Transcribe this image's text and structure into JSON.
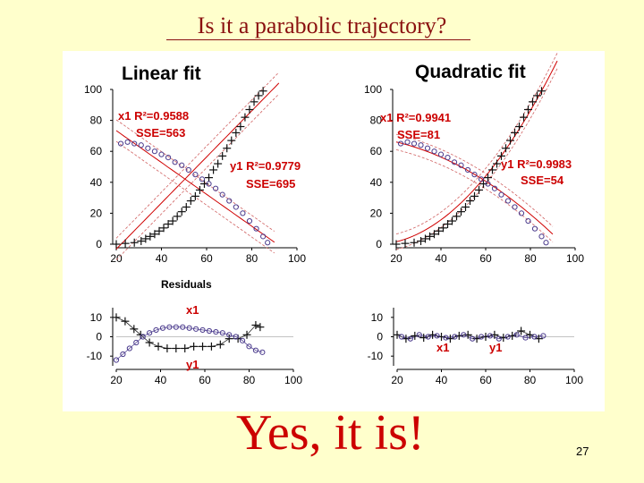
{
  "slide": {
    "title": "Is it a parabolic trajectory?",
    "conclusion": "Yes, it is!",
    "page_number": "27"
  },
  "colors": {
    "background": "#ffffcc",
    "title": "#8a1010",
    "conclusion": "#cc0000",
    "annotation": "#cc0000",
    "x1_series": "#111111",
    "y1_series": "#4a3a8c",
    "fit_line": "#d00000",
    "confidence_band": "#d06060"
  },
  "chart_data": [
    {
      "type": "scatter",
      "title": "Linear fit",
      "xlim": [
        20,
        100
      ],
      "ylim": [
        0,
        100
      ],
      "x_ticks": [
        "20",
        "40",
        "60",
        "80",
        "100"
      ],
      "y_ticks": [
        "0",
        "20",
        "40",
        "60",
        "80",
        "100"
      ],
      "annotations": [
        "x1 R²=0.9588",
        "SSE=563",
        "y1 R²=0.9779",
        "SSE=695"
      ],
      "series": [
        {
          "marker": "plus",
          "x": [
            20,
            24,
            28,
            31,
            33,
            35,
            37,
            39,
            41,
            43,
            45,
            47,
            49,
            51,
            53,
            55,
            57,
            59,
            61,
            63,
            65,
            67,
            69,
            71,
            73,
            75,
            77,
            79,
            81,
            83,
            85
          ],
          "y": [
            0,
            0.5,
            1,
            2,
            3.5,
            5,
            6.5,
            8.5,
            10.5,
            13,
            15,
            18,
            21,
            24,
            28,
            31,
            35,
            39,
            43,
            48,
            52,
            57,
            62,
            67,
            72,
            76,
            82,
            87,
            92,
            96,
            99
          ]
        },
        {
          "marker": "circle",
          "x": [
            22,
            25,
            28,
            31,
            34,
            37,
            40,
            43,
            46,
            49,
            52,
            55,
            58,
            61,
            64,
            67,
            70,
            73,
            76,
            79,
            82,
            85,
            87
          ],
          "y": [
            65,
            66,
            65,
            64,
            62,
            60,
            58,
            56,
            53,
            51,
            48,
            45,
            42,
            39,
            36,
            32,
            28,
            24,
            20,
            15,
            10,
            5,
            1
          ]
        }
      ],
      "fits": [
        {
          "slope": 1.49,
          "intercept": -33
        },
        {
          "slope": -1.03,
          "intercept": 94
        }
      ]
    },
    {
      "type": "scatter",
      "title": "Quadratic fit",
      "xlim": [
        20,
        100
      ],
      "ylim": [
        0,
        100
      ],
      "x_ticks": [
        "20",
        "40",
        "60",
        "80",
        "100"
      ],
      "y_ticks": [
        "0",
        "20",
        "40",
        "60",
        "80",
        "100"
      ],
      "annotations": [
        "x1 R²=0.9941",
        "SSE=81",
        "y1 R²=0.9983",
        "SSE=54"
      ],
      "series": [
        {
          "marker": "plus",
          "x": [
            20,
            24,
            28,
            31,
            33,
            35,
            37,
            39,
            41,
            43,
            45,
            47,
            49,
            51,
            53,
            55,
            57,
            59,
            61,
            63,
            65,
            67,
            69,
            71,
            73,
            75,
            77,
            79,
            81,
            83,
            85
          ],
          "y": [
            0,
            0.5,
            1,
            2,
            3.5,
            5,
            6.5,
            8.5,
            10.5,
            13,
            15,
            18,
            21,
            24,
            28,
            31,
            35,
            39,
            43,
            48,
            52,
            57,
            62,
            67,
            72,
            76,
            82,
            87,
            92,
            96,
            99
          ]
        },
        {
          "marker": "circle",
          "x": [
            22,
            25,
            28,
            31,
            34,
            37,
            40,
            43,
            46,
            49,
            52,
            55,
            58,
            61,
            64,
            67,
            70,
            73,
            76,
            79,
            82,
            85,
            87
          ],
          "y": [
            65,
            66,
            65,
            64,
            62,
            60,
            58,
            56,
            53,
            51,
            48,
            45,
            42,
            39,
            36,
            32,
            28,
            24,
            20,
            15,
            10,
            5,
            1
          ]
        }
      ],
      "fits": [
        {
          "a": 0.0176,
          "b": -0.348,
          "c": 1.5
        },
        {
          "a": -0.00726,
          "b": -0.053,
          "c": 70
        }
      ]
    },
    {
      "type": "scatter",
      "title": "Residuals",
      "xlim": [
        20,
        100
      ],
      "ylim": [
        -15,
        15
      ],
      "x_ticks": [
        "20",
        "40",
        "60",
        "80",
        "100"
      ],
      "y_ticks": [
        "-10",
        "0",
        "10"
      ],
      "annotations": [
        "x1",
        "y1"
      ],
      "series": [
        {
          "marker": "plus",
          "x": [
            20,
            24,
            28,
            31,
            35,
            39,
            43,
            47,
            51,
            55,
            59,
            63,
            67,
            71,
            75,
            79,
            83,
            85
          ],
          "y": [
            10,
            8,
            4,
            1,
            -3,
            -5,
            -6,
            -6,
            -6,
            -5,
            -5,
            -5,
            -4,
            -1,
            -1,
            1,
            6,
            5
          ]
        },
        {
          "marker": "circle",
          "x": [
            20,
            23,
            26,
            29,
            32,
            35,
            38,
            41,
            44,
            47,
            50,
            53,
            56,
            59,
            62,
            65,
            68,
            71,
            74,
            77,
            80,
            83,
            86
          ],
          "y": [
            -12,
            -9,
            -6,
            -3,
            0,
            2,
            3.5,
            4.5,
            5,
            5,
            5,
            4.5,
            4,
            3.5,
            3,
            2.5,
            2,
            1,
            0,
            -2,
            -5,
            -7,
            -8
          ]
        }
      ]
    },
    {
      "type": "scatter",
      "title": "",
      "xlim": [
        20,
        100
      ],
      "ylim": [
        -15,
        15
      ],
      "x_ticks": [
        "20",
        "40",
        "60",
        "80",
        "100"
      ],
      "y_ticks": [
        "-10",
        "0",
        "10"
      ],
      "annotations": [
        "x1",
        "y1"
      ],
      "series": [
        {
          "marker": "plus",
          "x": [
            20,
            24,
            28,
            32,
            36,
            40,
            44,
            48,
            52,
            56,
            60,
            64,
            68,
            72,
            76,
            80,
            84
          ],
          "y": [
            1,
            -1,
            0.5,
            -0.5,
            1,
            0,
            -1,
            0.5,
            1,
            -1,
            0,
            1,
            -0.5,
            0.5,
            3,
            1,
            -1
          ]
        },
        {
          "marker": "circle",
          "x": [
            22,
            26,
            30,
            34,
            38,
            42,
            46,
            50,
            54,
            58,
            62,
            66,
            70,
            74,
            78,
            82,
            86
          ],
          "y": [
            0,
            -1,
            1,
            0,
            0.5,
            -0.5,
            0,
            1,
            -1,
            0,
            0.5,
            -1,
            0,
            1,
            -0.5,
            0,
            0.5
          ]
        }
      ]
    }
  ]
}
